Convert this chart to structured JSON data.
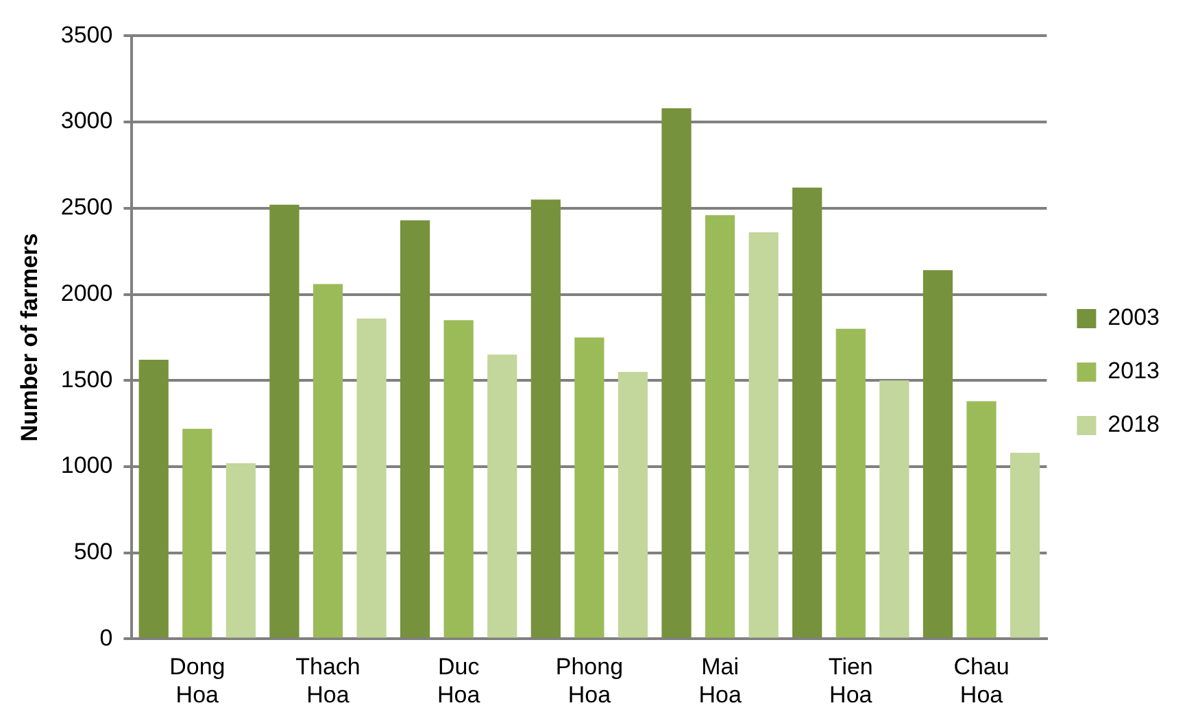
{
  "chart_data": {
    "type": "bar",
    "ylabel": "Number of farmers",
    "categories": [
      "Dong Hoa",
      "Thach Hoa",
      "Duc Hoa",
      "Phong Hoa",
      "Mai Hoa",
      "Tien Hoa",
      "Chau Hoa"
    ],
    "series": [
      {
        "name": "2003",
        "color": "#76923c",
        "values": [
          1620,
          2520,
          2430,
          2550,
          3080,
          2620,
          2140
        ]
      },
      {
        "name": "2013",
        "color": "#9bbb59",
        "values": [
          1220,
          2060,
          1850,
          1750,
          2460,
          1800,
          1380
        ]
      },
      {
        "name": "2018",
        "color": "#c3d69b",
        "values": [
          1020,
          1860,
          1650,
          1550,
          2360,
          1500,
          1080
        ]
      }
    ],
    "ylim": [
      0,
      3500
    ],
    "yticks": [
      0,
      500,
      1000,
      1500,
      2000,
      2500,
      3000,
      3500
    ],
    "grid": "y",
    "legend": "right"
  }
}
